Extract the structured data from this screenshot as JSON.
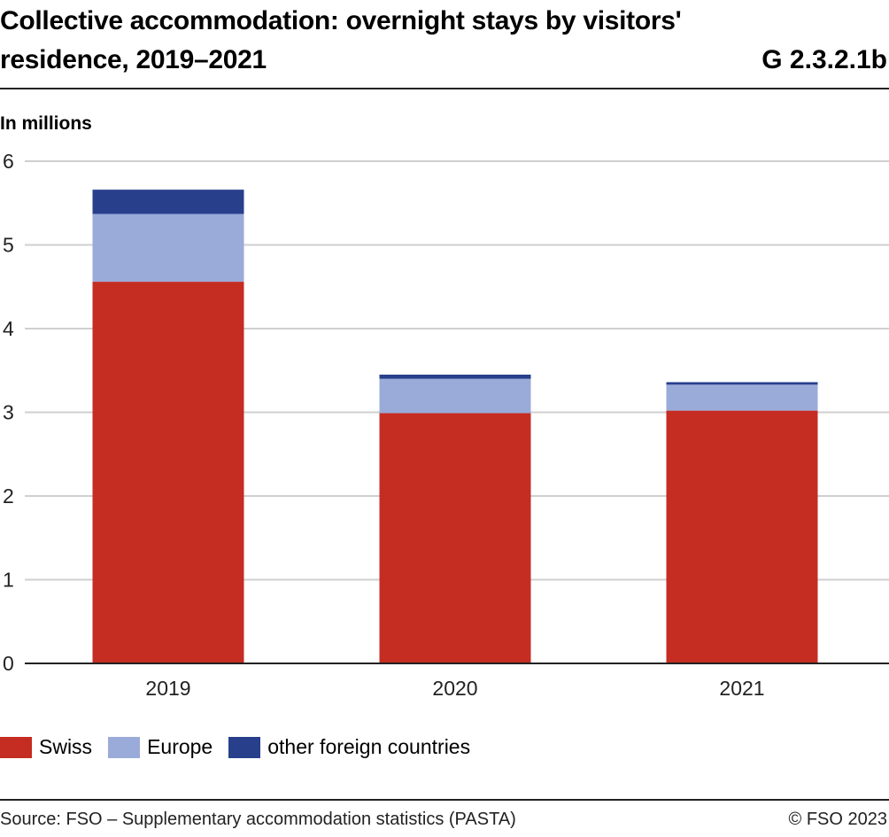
{
  "header": {
    "title_line1": "Collective accommodation: overnight stays by visitors'",
    "title_line2": "residence, 2019–2021",
    "graphic_id": "G 2.3.2.1b"
  },
  "footer": {
    "source": "Source: FSO – Supplementary accommodation statistics (PASTA)",
    "copyright": "© FSO 2023"
  },
  "chart_data": {
    "type": "bar",
    "stacked": true,
    "title": "Collective accommodation: overnight stays by visitors' residence, 2019–2021",
    "xlabel": "",
    "ylabel": "In millions",
    "ylim": [
      0,
      6
    ],
    "yticks": [
      0,
      1,
      2,
      3,
      4,
      5,
      6
    ],
    "grid": true,
    "legend_position": "bottom-left",
    "categories": [
      "2019",
      "2020",
      "2021"
    ],
    "series": [
      {
        "name": "Swiss",
        "color": "#c52c22",
        "values": [
          4.56,
          2.99,
          3.02
        ]
      },
      {
        "name": "Europe",
        "color": "#9aabd9",
        "values": [
          0.81,
          0.41,
          0.31
        ]
      },
      {
        "name": "other foreign countries",
        "color": "#283f8c",
        "values": [
          0.29,
          0.05,
          0.03
        ]
      }
    ]
  }
}
